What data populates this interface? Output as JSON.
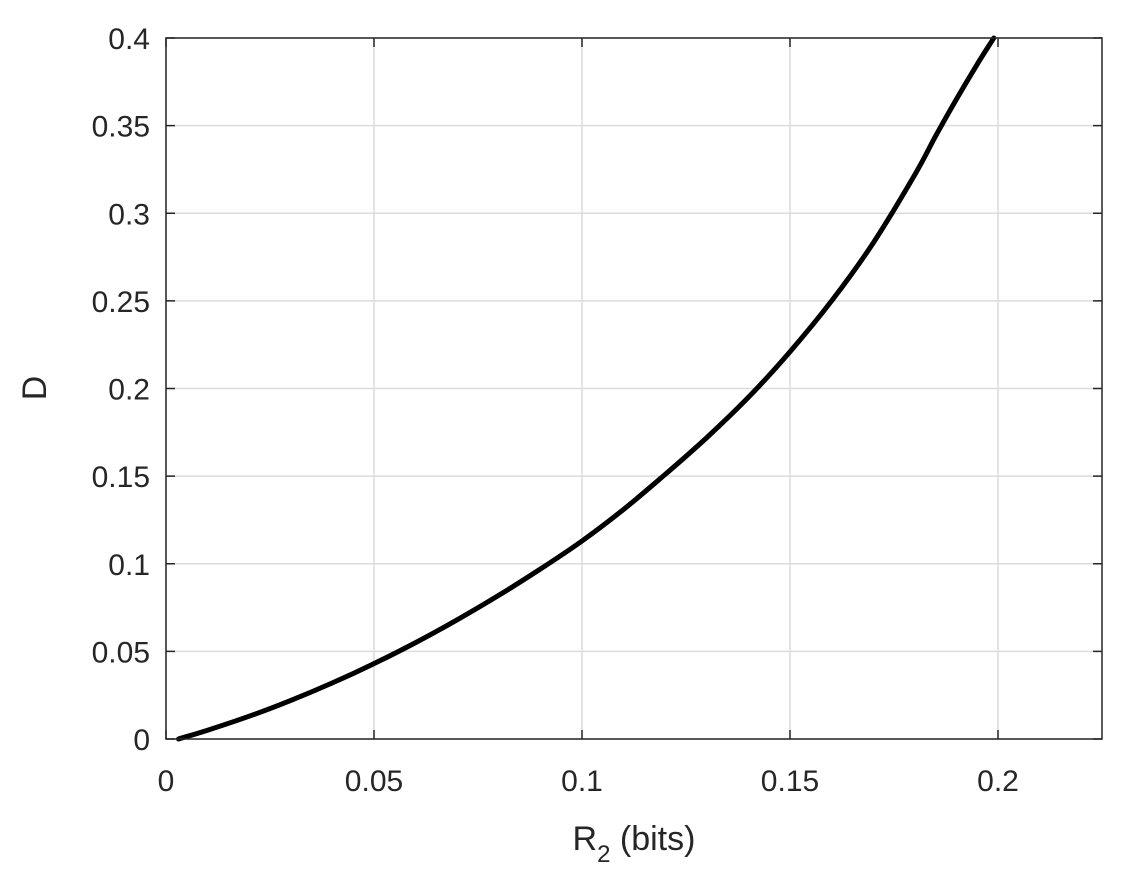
{
  "chart_data": {
    "type": "line",
    "title": "",
    "xlabel": {
      "main": "R",
      "subscript": "2",
      "suffix": " (bits)"
    },
    "ylabel": "D",
    "xlim": [
      0,
      0.225
    ],
    "ylim": [
      0,
      0.4
    ],
    "xticks": [
      0,
      0.05,
      0.1,
      0.15,
      0.2
    ],
    "xtick_labels": [
      "0",
      "0.05",
      "0.1",
      "0.15",
      "0.2"
    ],
    "yticks": [
      0,
      0.05,
      0.1,
      0.15,
      0.2,
      0.25,
      0.3,
      0.35,
      0.4
    ],
    "ytick_labels": [
      "0",
      "0.05",
      "0.1",
      "0.15",
      "0.2",
      "0.25",
      "0.3",
      "0.35",
      "0.4"
    ],
    "grid": true,
    "series": [
      {
        "color": "#000000",
        "x": [
          0.003,
          0.01,
          0.02,
          0.03,
          0.04,
          0.05,
          0.06,
          0.07,
          0.08,
          0.09,
          0.1,
          0.11,
          0.12,
          0.13,
          0.14,
          0.15,
          0.16,
          0.17,
          0.18,
          0.185,
          0.19,
          0.195,
          0.199
        ],
        "y": [
          0.0,
          0.005,
          0.013,
          0.022,
          0.032,
          0.043,
          0.055,
          0.068,
          0.082,
          0.097,
          0.113,
          0.131,
          0.151,
          0.172,
          0.195,
          0.221,
          0.25,
          0.283,
          0.322,
          0.344,
          0.365,
          0.385,
          0.4
        ]
      }
    ]
  }
}
